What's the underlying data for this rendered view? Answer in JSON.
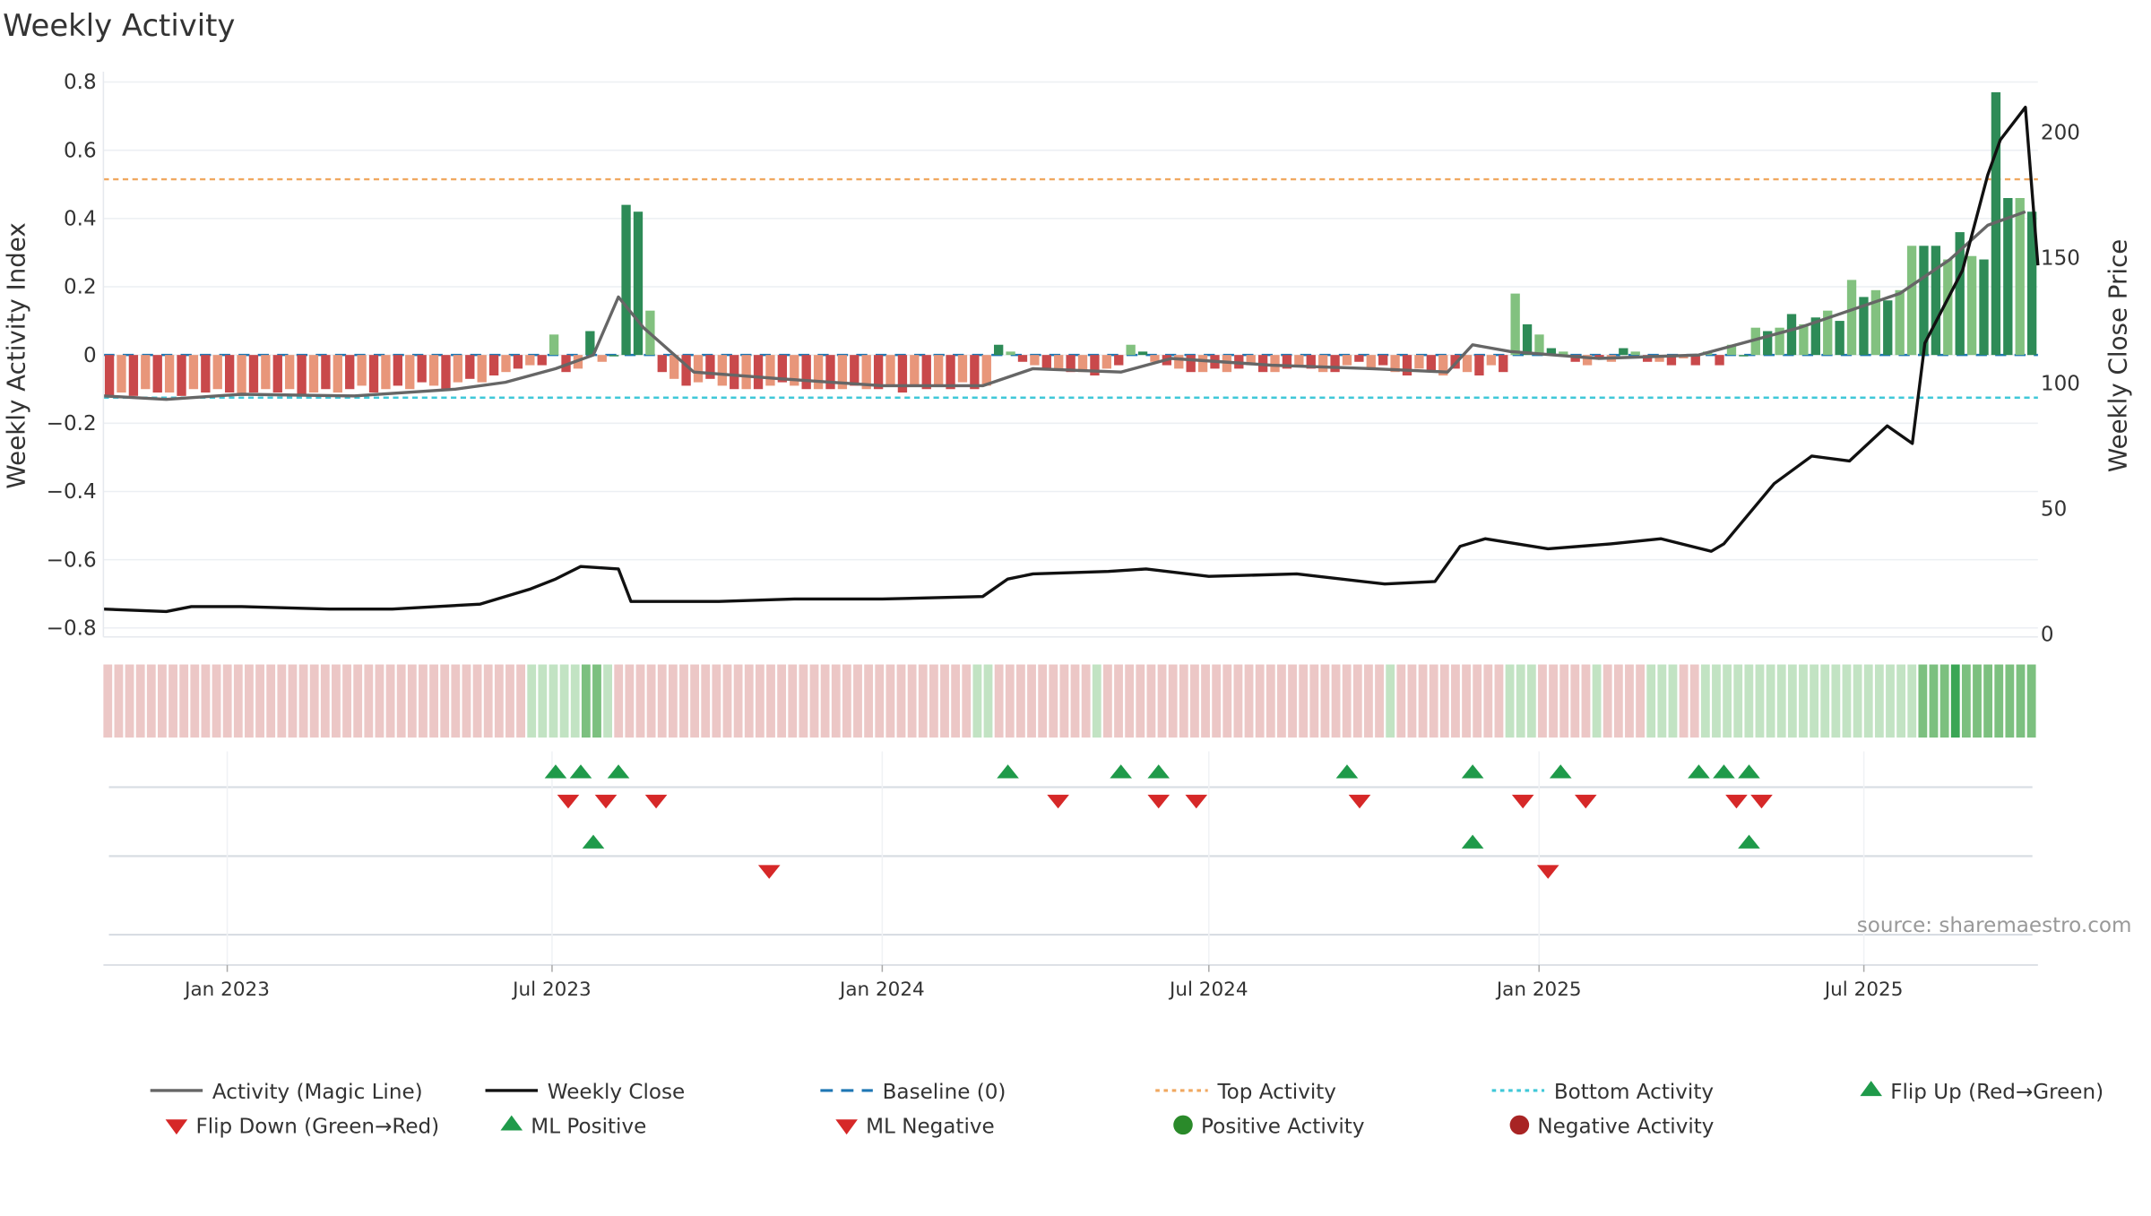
{
  "title": "Weekly Activity",
  "source": "source: sharemaestro.com",
  "colors": {
    "strong_green": "#2e8b57",
    "light_green": "#82c17f",
    "strong_red": "#c9494b",
    "light_red": "#e8967a",
    "magic_line": "#666666",
    "close_line": "#111111",
    "baseline": "#1f77b4",
    "top_line": "#f0a860",
    "bottom_line": "#40c8d8",
    "marker_up": "#1f9a4a",
    "marker_down": "#d62828"
  },
  "chart_data": {
    "type": "bar",
    "title": "Weekly Activity",
    "ylabel_left": "Weekly Activity Index",
    "ylabel_right": "Weekly Close Price",
    "y_left_ticks": [
      "0.8",
      "0.6",
      "0.4",
      "0.2",
      "0",
      "−0.2",
      "−0.4",
      "−0.6",
      "−0.8"
    ],
    "y_right_ticks": [
      "200",
      "150",
      "100",
      "50",
      "0"
    ],
    "ylim_left": [
      -0.82,
      0.8
    ],
    "ylim_right": [
      0,
      217
    ],
    "x_ticks": [
      "Jan 2023",
      "Jul 2023",
      "Jan 2024",
      "Jul 2024",
      "Jan 2025",
      "Jul 2025"
    ],
    "x_range": [
      "2022-10-24",
      "2025-10-06"
    ],
    "top_activity": 0.515,
    "bottom_activity": -0.125,
    "baseline": 0,
    "grid": true,
    "legend_position": "bottom",
    "legend": [
      {
        "label": "Activity (Magic Line)",
        "symbol": "line",
        "color": "#666666"
      },
      {
        "label": "Weekly Close",
        "symbol": "line",
        "color": "#111111"
      },
      {
        "label": "Baseline (0)",
        "symbol": "dash",
        "color": "#1f77b4"
      },
      {
        "label": "Top Activity",
        "symbol": "dot",
        "color": "#f0a860"
      },
      {
        "label": "Bottom Activity",
        "symbol": "dot",
        "color": "#40c8d8"
      },
      {
        "label": "Flip Up (Red→Green)",
        "symbol": "tri-up",
        "color": "#1f9a4a"
      },
      {
        "label": "Flip Down (Green→Red)",
        "symbol": "tri-down",
        "color": "#d62828"
      },
      {
        "label": "ML Positive",
        "symbol": "tri-up",
        "color": "#1f9a4a"
      },
      {
        "label": "ML Negative",
        "symbol": "tri-down",
        "color": "#d62828"
      },
      {
        "label": "Positive Activity",
        "symbol": "circle",
        "color": "#2a8a2a"
      },
      {
        "label": "Negative Activity",
        "symbol": "circle",
        "color": "#a82424"
      }
    ],
    "series": [
      {
        "name": "Activity (Magic Line)",
        "kind": "line",
        "points": [
          [
            "2022-10-24",
            -0.12
          ],
          [
            "2022-11-28",
            -0.13
          ],
          [
            "2023-01-09",
            -0.115
          ],
          [
            "2023-03-13",
            -0.12
          ],
          [
            "2023-05-08",
            -0.1
          ],
          [
            "2023-06-05",
            -0.08
          ],
          [
            "2023-07-03",
            -0.04
          ],
          [
            "2023-07-24",
            0.0
          ],
          [
            "2023-08-07",
            0.17
          ],
          [
            "2023-08-21",
            0.08
          ],
          [
            "2023-09-18",
            -0.05
          ],
          [
            "2023-11-06",
            -0.07
          ],
          [
            "2024-01-01",
            -0.09
          ],
          [
            "2024-02-26",
            -0.09
          ],
          [
            "2024-03-25",
            -0.04
          ],
          [
            "2024-05-13",
            -0.05
          ],
          [
            "2024-06-10",
            -0.01
          ],
          [
            "2024-08-05",
            -0.03
          ],
          [
            "2024-09-30",
            -0.04
          ],
          [
            "2024-11-11",
            -0.05
          ],
          [
            "2024-11-25",
            0.03
          ],
          [
            "2024-12-16",
            0.01
          ],
          [
            "2025-02-03",
            -0.01
          ],
          [
            "2025-03-31",
            0.0
          ],
          [
            "2025-05-26",
            0.08
          ],
          [
            "2025-07-21",
            0.18
          ],
          [
            "2025-08-18",
            0.28
          ],
          [
            "2025-09-08",
            0.38
          ],
          [
            "2025-09-29",
            0.42
          ]
        ]
      },
      {
        "name": "Weekly Close",
        "kind": "line",
        "points": [
          [
            "2022-10-24",
            10
          ],
          [
            "2022-11-28",
            9
          ],
          [
            "2022-12-12",
            11
          ],
          [
            "2023-01-09",
            11
          ],
          [
            "2023-02-27",
            10
          ],
          [
            "2023-04-03",
            10
          ],
          [
            "2023-05-22",
            12
          ],
          [
            "2023-06-19",
            18
          ],
          [
            "2023-07-03",
            22
          ],
          [
            "2023-07-17",
            27
          ],
          [
            "2023-08-07",
            26
          ],
          [
            "2023-08-14",
            13
          ],
          [
            "2023-10-02",
            13
          ],
          [
            "2023-11-13",
            14
          ],
          [
            "2024-01-01",
            14
          ],
          [
            "2024-02-26",
            15
          ],
          [
            "2024-03-11",
            22
          ],
          [
            "2024-03-25",
            24
          ],
          [
            "2024-05-06",
            25
          ],
          [
            "2024-05-27",
            26
          ],
          [
            "2024-07-01",
            23
          ],
          [
            "2024-08-19",
            24
          ],
          [
            "2024-10-07",
            20
          ],
          [
            "2024-11-04",
            21
          ],
          [
            "2024-11-18",
            35
          ],
          [
            "2024-12-02",
            38
          ],
          [
            "2025-01-06",
            34
          ],
          [
            "2025-02-10",
            36
          ],
          [
            "2025-03-10",
            38
          ],
          [
            "2025-04-07",
            33
          ],
          [
            "2025-04-14",
            36
          ],
          [
            "2025-05-12",
            60
          ],
          [
            "2025-06-02",
            71
          ],
          [
            "2025-06-23",
            69
          ],
          [
            "2025-07-14",
            83
          ],
          [
            "2025-07-28",
            76
          ],
          [
            "2025-08-04",
            116
          ],
          [
            "2025-08-25",
            145
          ],
          [
            "2025-09-08",
            183
          ],
          [
            "2025-09-15",
            197
          ],
          [
            "2025-09-29",
            210
          ],
          [
            "2025-10-06",
            147
          ]
        ]
      }
    ],
    "bars": {
      "start": "2022-10-24",
      "interval_days": 7,
      "values": [
        -0.12,
        -0.11,
        -0.12,
        -0.1,
        -0.11,
        -0.11,
        -0.12,
        -0.1,
        -0.11,
        -0.1,
        -0.11,
        -0.12,
        -0.11,
        -0.1,
        -0.11,
        -0.1,
        -0.12,
        -0.11,
        -0.1,
        -0.11,
        -0.1,
        -0.09,
        -0.11,
        -0.1,
        -0.09,
        -0.1,
        -0.08,
        -0.09,
        -0.1,
        -0.08,
        -0.07,
        -0.08,
        -0.06,
        -0.05,
        -0.04,
        -0.03,
        -0.03,
        0.06,
        -0.05,
        -0.04,
        0.07,
        -0.02,
        0.0,
        0.44,
        0.42,
        0.13,
        -0.05,
        -0.07,
        -0.09,
        -0.08,
        -0.07,
        -0.09,
        -0.1,
        -0.1,
        -0.1,
        -0.09,
        -0.08,
        -0.09,
        -0.1,
        -0.1,
        -0.1,
        -0.1,
        -0.09,
        -0.1,
        -0.1,
        -0.09,
        -0.11,
        -0.09,
        -0.1,
        -0.09,
        -0.1,
        -0.08,
        -0.1,
        -0.09,
        0.03,
        0.01,
        -0.02,
        -0.03,
        -0.04,
        -0.04,
        -0.05,
        -0.05,
        -0.06,
        -0.04,
        -0.03,
        0.03,
        0.01,
        -0.02,
        -0.03,
        -0.04,
        -0.05,
        -0.05,
        -0.04,
        -0.05,
        -0.04,
        -0.03,
        -0.05,
        -0.05,
        -0.04,
        -0.03,
        -0.04,
        -0.05,
        -0.05,
        -0.03,
        -0.02,
        -0.04,
        -0.03,
        -0.05,
        -0.06,
        -0.04,
        -0.05,
        -0.06,
        -0.04,
        -0.05,
        -0.06,
        -0.03,
        -0.05,
        0.18,
        0.09,
        0.06,
        0.02,
        0.01,
        -0.02,
        -0.03,
        -0.01,
        -0.02,
        0.02,
        0.01,
        -0.02,
        -0.02,
        -0.03,
        -0.01,
        -0.03,
        0.01,
        -0.03,
        0.03,
        0.0,
        0.08,
        0.07,
        0.08,
        0.12,
        0.09,
        0.11,
        0.13,
        0.1,
        0.22,
        0.17,
        0.19,
        0.16,
        0.19,
        0.32,
        0.32,
        0.32,
        0.28,
        0.36,
        0.29,
        0.28,
        0.77,
        0.46,
        0.46,
        0.42
      ]
    },
    "strip": {
      "note": "weekly state strip; g = green tone, r = red tone",
      "cells": "rrrrrrrrrrrrrrrrrrrrrrrrrrrrrrrrrrrrrrrgggggGGgrrrrrrrrrrrrrrrrrrrrrrrrrrrrrrrrrggrrrrrrrrrgrrrrrrrrrrrrrrrrrrrrrrrrrrgrrrrrrrrrrgggrrrrrgrrrrgggrrggggggggggggggggggggGGGGGGGGGGG"
    },
    "markers": {
      "row1_up": [
        "2023-07-03",
        "2023-07-17",
        "2023-08-07",
        "2024-03-11",
        "2024-05-13",
        "2024-06-03",
        "2024-09-16",
        "2024-11-25",
        "2025-01-13",
        "2025-03-31",
        "2025-04-14",
        "2025-04-28"
      ],
      "row1_down": [
        "2023-07-10",
        "2023-07-31",
        "2023-08-28",
        "2024-04-08",
        "2024-06-03",
        "2024-06-24",
        "2024-09-23",
        "2024-12-23",
        "2025-01-27",
        "2025-04-21",
        "2025-05-05"
      ],
      "row2_up": [
        "2023-07-24",
        "2024-11-25",
        "2025-04-28"
      ],
      "row2_down": [
        "2023-10-30",
        "2025-01-06"
      ]
    }
  }
}
